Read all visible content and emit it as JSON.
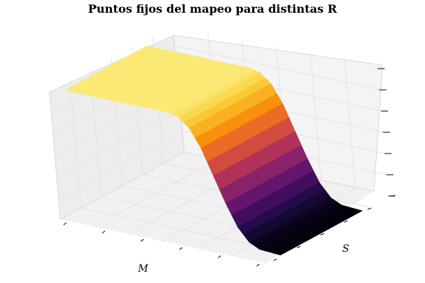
{
  "chart_data": {
    "type": "surface",
    "title": "Puntos fijos del mapeo para distintas R",
    "xlabel": "M",
    "ylabel": "S",
    "zlabel": "",
    "colormap": "inferno",
    "description_values": {
      "M_range": [
        0,
        1
      ],
      "S_range": [
        0,
        1
      ],
      "Z_range": [
        0,
        1
      ]
    },
    "surface_profile": {
      "M": [
        0.0,
        0.1,
        0.2,
        0.3,
        0.4,
        0.5,
        0.55,
        0.6,
        0.65,
        0.7,
        0.75,
        0.8,
        0.85,
        0.9,
        1.0
      ],
      "Z": [
        0.95,
        0.95,
        0.95,
        0.95,
        0.95,
        0.95,
        0.93,
        0.86,
        0.72,
        0.52,
        0.32,
        0.15,
        0.05,
        0.01,
        0.0
      ]
    },
    "grid": true
  }
}
